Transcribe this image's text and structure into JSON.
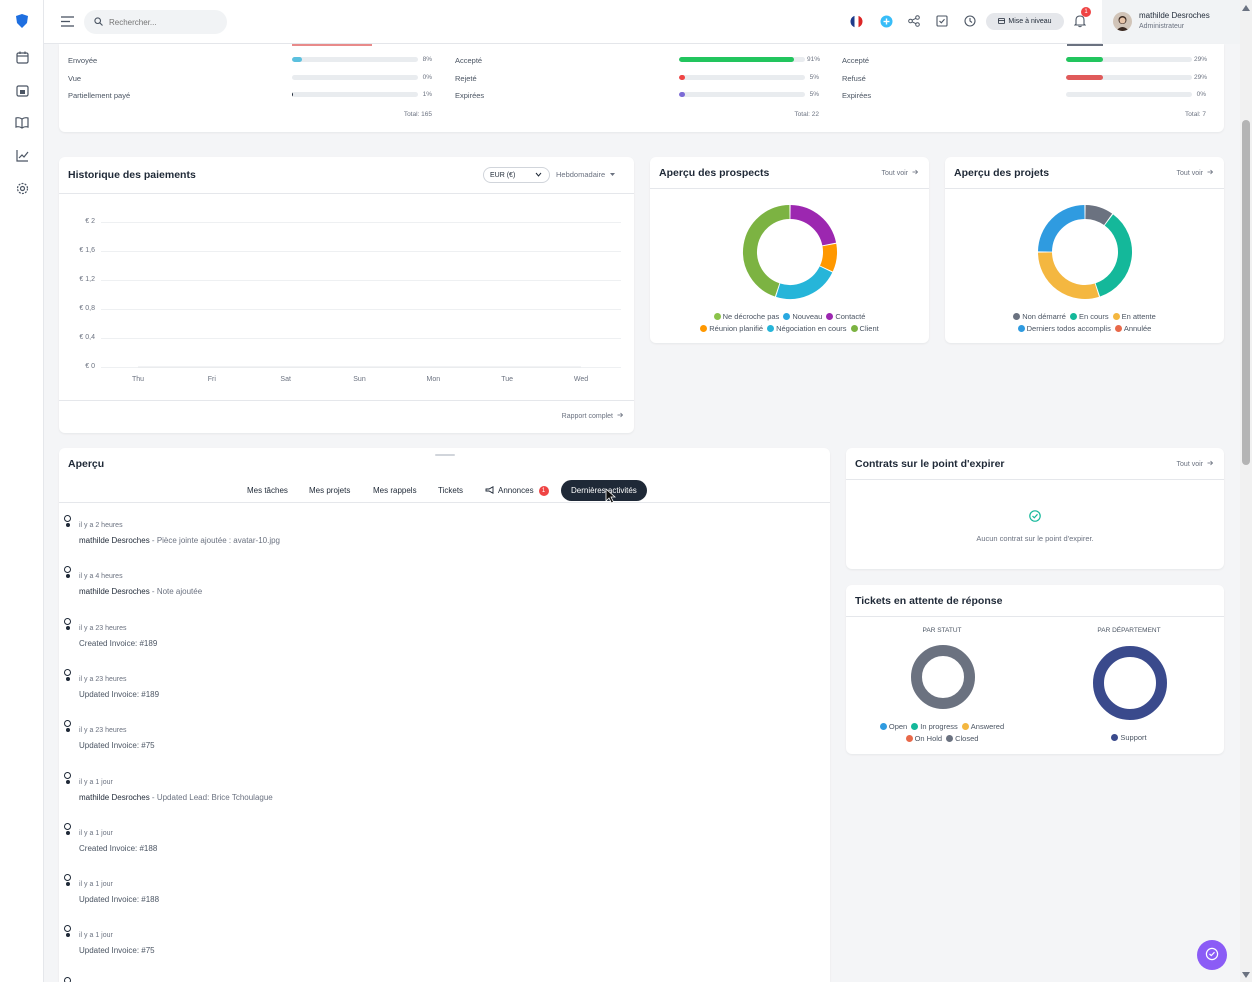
{
  "topbar": {
    "search_placeholder": "Rechercher...",
    "upgrade_label": "Mise à niveau",
    "notification_count": "1",
    "user_name": "mathilde Desroches",
    "user_role": "Administrateur"
  },
  "status_summary": {
    "col1": {
      "rows": [
        {
          "label": "Envoyée",
          "pct": "8%",
          "value": 8,
          "color": "#5bc0de"
        },
        {
          "label": "Vue",
          "pct": "0%",
          "value": 0,
          "color": "#5bc0de"
        },
        {
          "label": "Partiellement payé",
          "pct": "1%",
          "value": 1,
          "color": "#1f2937"
        }
      ],
      "total": "Total: 165"
    },
    "col2": {
      "rows": [
        {
          "label": "Accepté",
          "pct": "91%",
          "value": 91,
          "color": "#22c55e"
        },
        {
          "label": "Rejeté",
          "pct": "5%",
          "value": 5,
          "color": "#ef4444"
        },
        {
          "label": "Expirées",
          "pct": "5%",
          "value": 5,
          "color": "#7c6bd6"
        }
      ],
      "total": "Total: 22"
    },
    "col3": {
      "rows": [
        {
          "label": "Accepté",
          "pct": "29%",
          "value": 29,
          "color": "#22c55e"
        },
        {
          "label": "Refusé",
          "pct": "29%",
          "value": 29,
          "color": "#e05a5a"
        },
        {
          "label": "Expirées",
          "pct": "0%",
          "value": 0,
          "color": "#e05a5a"
        }
      ],
      "total": "Total: 7"
    }
  },
  "payments": {
    "title": "Historique des paiements",
    "currency": "EUR (€)",
    "period": "Hebdomadaire",
    "footer_link": "Rapport complet",
    "chart_data": {
      "type": "line",
      "title": "",
      "x": [
        "Thu",
        "Fri",
        "Sat",
        "Sun",
        "Mon",
        "Tue",
        "Wed"
      ],
      "y_ticks": [
        "€ 2",
        "€ 1,6",
        "€ 1,2",
        "€ 0,8",
        "€ 0,4",
        "€ 0"
      ],
      "ylim": [
        0,
        2
      ],
      "series": [
        {
          "values": [
            0,
            0,
            0,
            0,
            0,
            0,
            0
          ]
        }
      ]
    }
  },
  "prospects": {
    "title": "Aperçu des prospects",
    "see_all": "Tout voir",
    "chart_data": {
      "type": "pie",
      "donut": true,
      "labels": [
        "Ne décroche pas",
        "Nouveau",
        "Contacté",
        "Réunion planifié",
        "Négociation en cours",
        "Client"
      ],
      "values": [
        0,
        0,
        22,
        10,
        23,
        45
      ],
      "colors": [
        "#8bc34a",
        "#29a8e0",
        "#9c27b0",
        "#ff9800",
        "#26b5d9",
        "#7cb342"
      ]
    }
  },
  "projects": {
    "title": "Aperçu des projets",
    "see_all": "Tout voir",
    "chart_data": {
      "type": "pie",
      "donut": true,
      "labels": [
        "Non démarré",
        "En cours",
        "En attente",
        "Derniers todos accomplis",
        "Annulée"
      ],
      "values": [
        10,
        35,
        30,
        25,
        0
      ],
      "colors": [
        "#6b7280",
        "#14b89a",
        "#f4b740",
        "#2f9be0",
        "#e8694a"
      ]
    }
  },
  "overview": {
    "title": "Aperçu",
    "tabs": [
      "Mes tâches",
      "Mes projets",
      "Mes rappels",
      "Tickets",
      "Annonces",
      "Dernières activités"
    ],
    "announce_badge": "1",
    "activities": [
      {
        "time": "il y a 2 heures",
        "user": "mathilde Desroches",
        "text": " - Pièce jointe ajoutée : avatar-10.jpg"
      },
      {
        "time": "il y a 4 heures",
        "user": "mathilde Desroches",
        "text": " - Note ajoutée"
      },
      {
        "time": "il y a 23 heures",
        "user": "",
        "text": "Created Invoice: #189"
      },
      {
        "time": "il y a 23 heures",
        "user": "",
        "text": "Updated Invoice: #189"
      },
      {
        "time": "il y a 23 heures",
        "user": "",
        "text": "Updated Invoice: #75"
      },
      {
        "time": "il y a 1 jour",
        "user": "mathilde Desroches",
        "text": " - Updated Lead: Brice Tchoulague"
      },
      {
        "time": "il y a 1 jour",
        "user": "",
        "text": "Created Invoice: #188"
      },
      {
        "time": "il y a 1 jour",
        "user": "",
        "text": "Updated Invoice: #188"
      },
      {
        "time": "il y a 1 jour",
        "user": "",
        "text": "Updated Invoice: #75"
      }
    ]
  },
  "contracts": {
    "title": "Contrats sur le point d'expirer",
    "see_all": "Tout voir",
    "empty": "Aucun contrat sur le point d'expirer."
  },
  "tickets": {
    "title": "Tickets en attente de réponse",
    "by_status_label": "PAR STATUT",
    "by_dept_label": "PAR DÉPARTEMENT",
    "status_chart": {
      "type": "pie",
      "donut": true,
      "labels": [
        "Open",
        "In progress",
        "Answered",
        "On Hold",
        "Closed"
      ],
      "values": [
        0,
        0,
        0,
        0,
        100
      ],
      "colors": [
        "#2f9be0",
        "#14b89a",
        "#f4b740",
        "#e8694a",
        "#6b7280"
      ]
    },
    "dept_chart": {
      "type": "pie",
      "donut": true,
      "labels": [
        "Support"
      ],
      "values": [
        100
      ],
      "colors": [
        "#3a4a8c"
      ]
    }
  }
}
